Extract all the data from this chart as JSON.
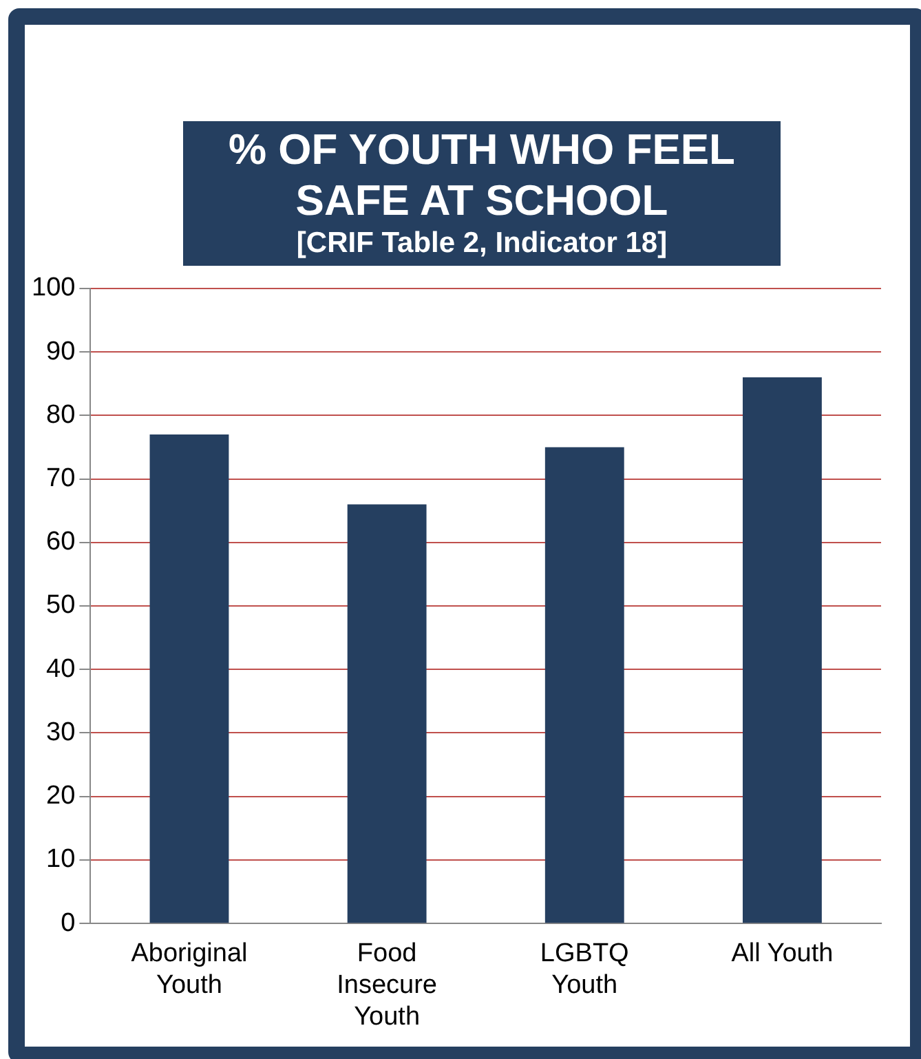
{
  "chart_data": {
    "type": "bar",
    "title": "% OF YOUTH WHO FEEL SAFE AT SCHOOL",
    "subtitle": "[CRIF Table 2, Indicator 18]",
    "categories": [
      "Aboriginal Youth",
      "Food Insecure Youth",
      "LGBTQ Youth",
      "All Youth"
    ],
    "values": [
      77,
      66,
      75,
      86
    ],
    "color": "#253f60",
    "ylim": [
      0,
      100
    ],
    "yticks": [
      0,
      10,
      20,
      30,
      40,
      50,
      60,
      70,
      80,
      90,
      100
    ],
    "grid": "y",
    "legend": false
  }
}
